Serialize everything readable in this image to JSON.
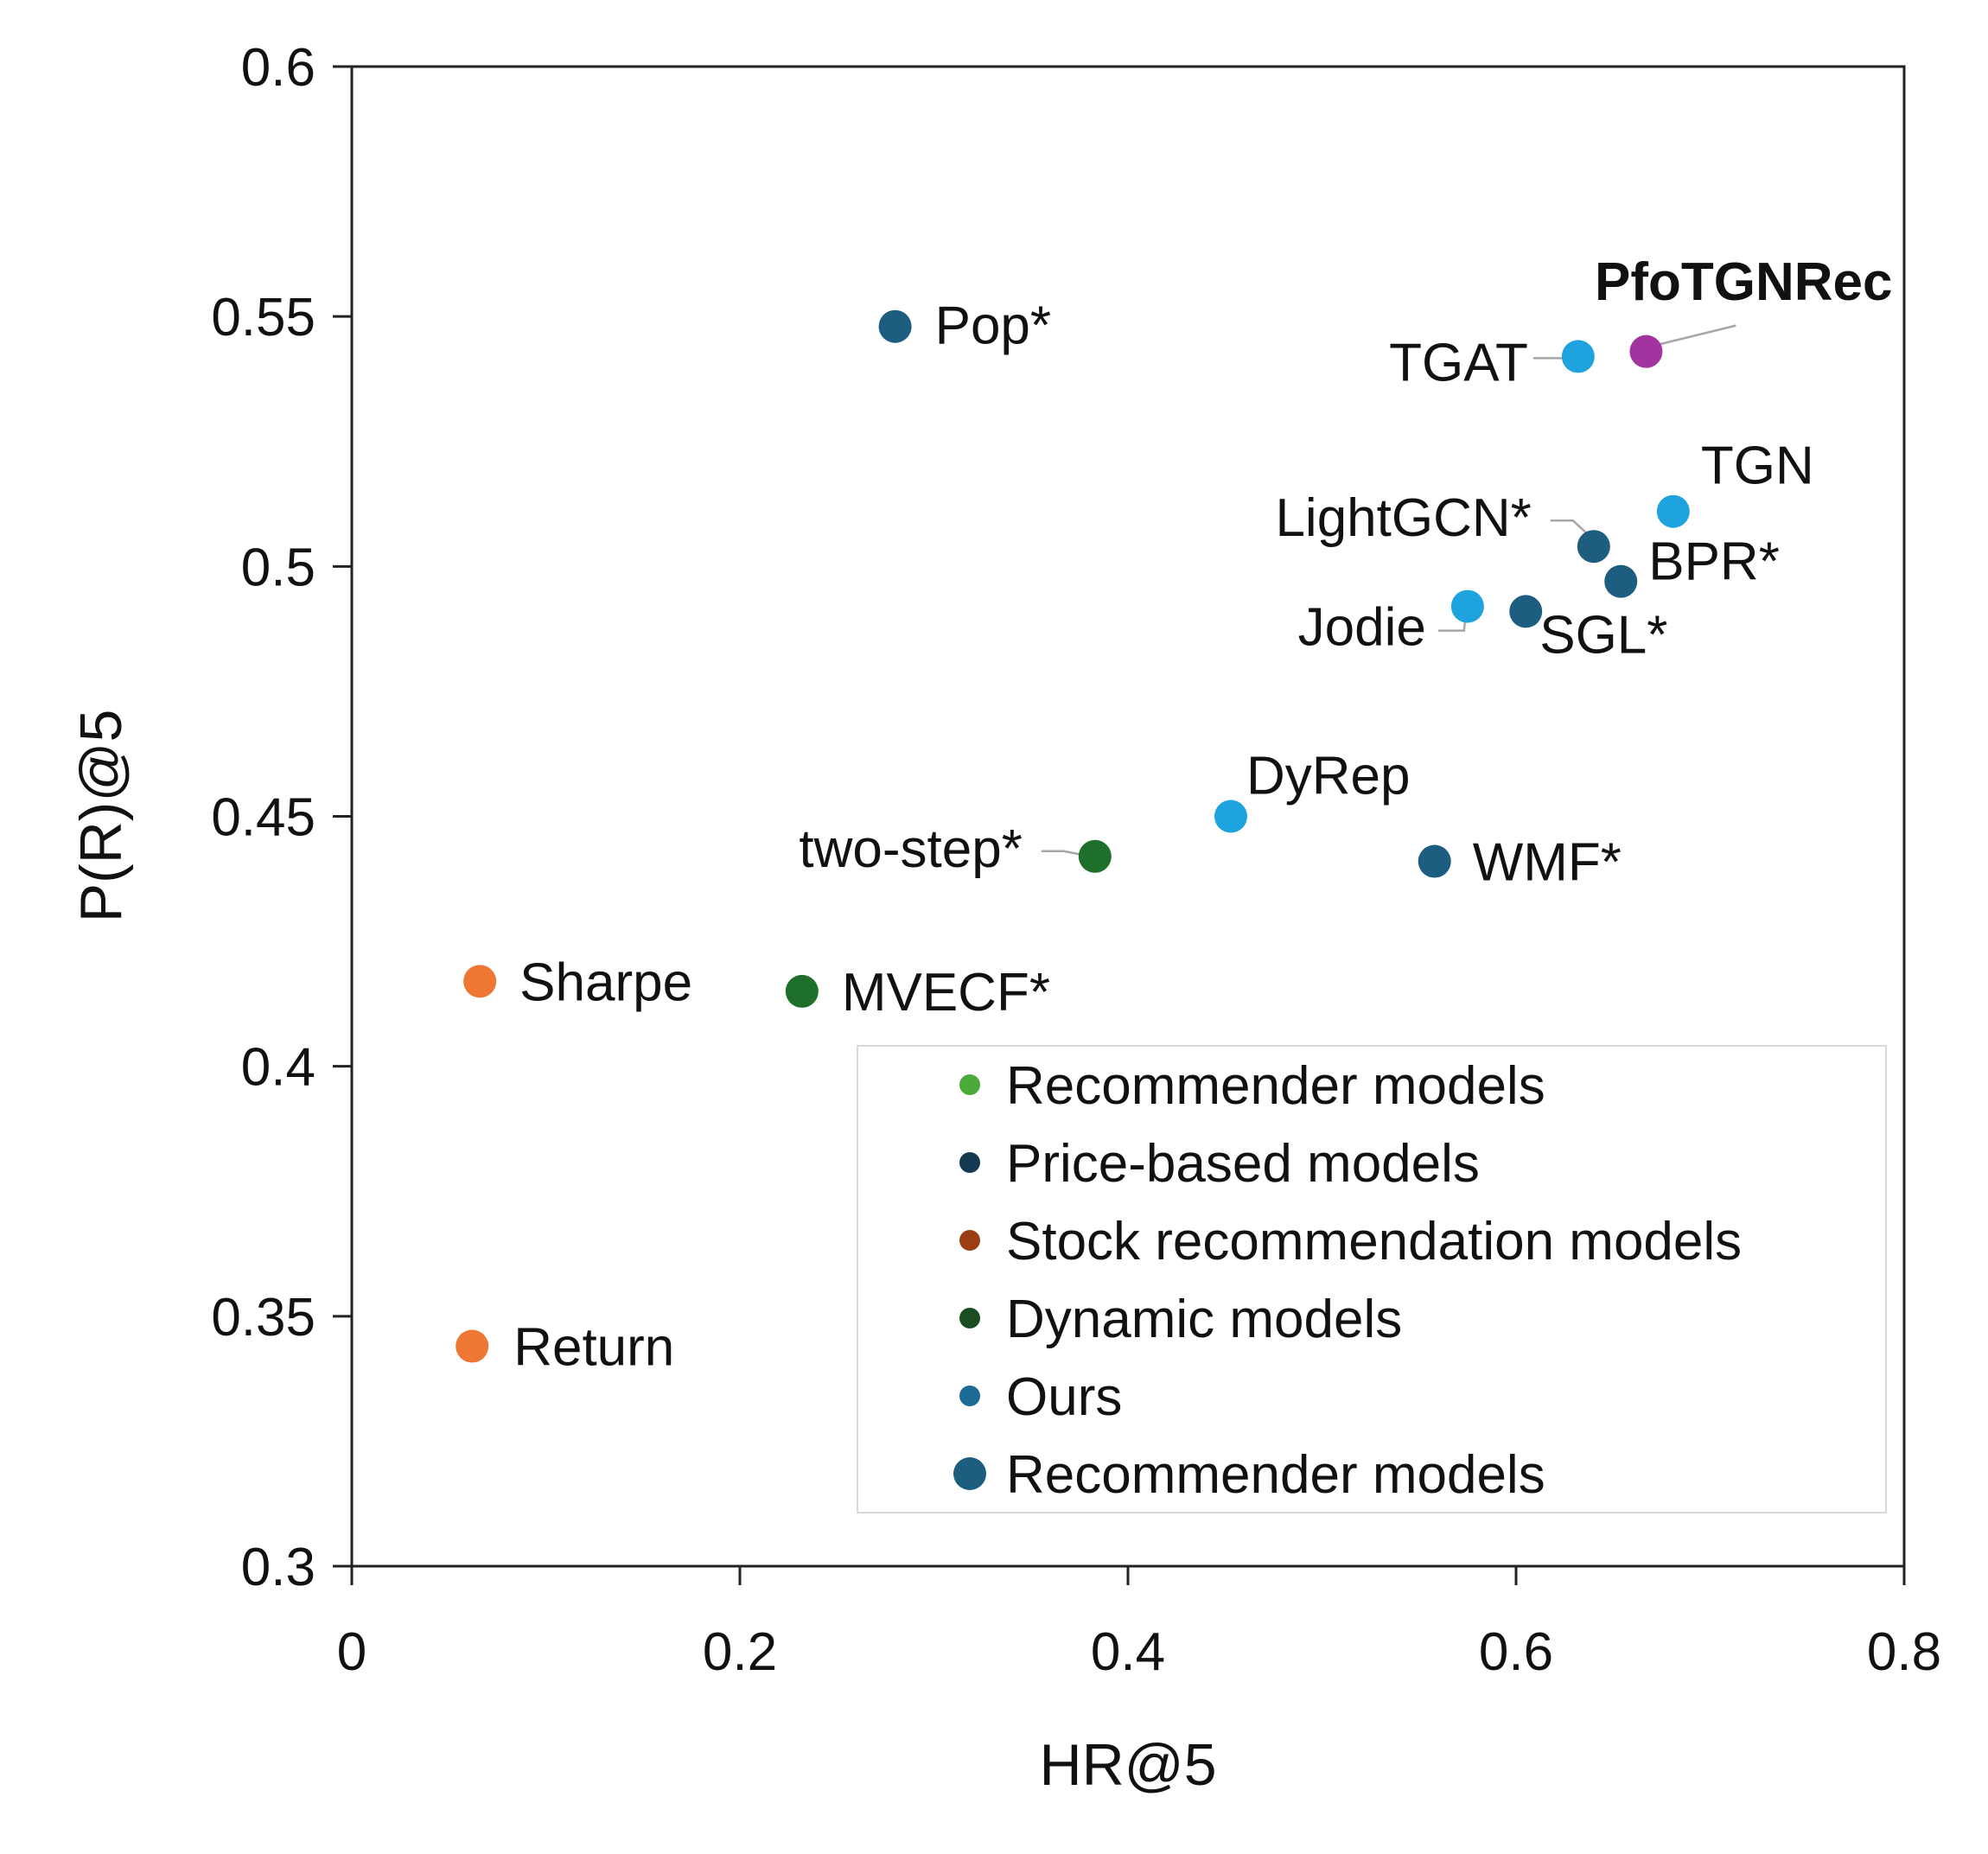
{
  "chart_data": {
    "type": "scatter",
    "xlabel": "HR@5",
    "ylabel": "P(R)@5",
    "xlim": [
      0,
      0.8
    ],
    "ylim": [
      0.3,
      0.6
    ],
    "xticks": [
      "0",
      "0.2",
      "0.4",
      "0.6",
      "0.8"
    ],
    "yticks": [
      "0.3",
      "0.35",
      "0.4",
      "0.45",
      "0.5",
      "0.55",
      "0.6"
    ],
    "grid": false,
    "legend_position": "bottom-right",
    "colors": {
      "recommender": "#1d5d80",
      "dynamic": "#24d0fb",
      "stock": "#ee7733",
      "portfolio": "#1e6f2a",
      "ours": "#a3339f"
    },
    "points": [
      {
        "label": "Pop*",
        "x": 0.28,
        "y": 0.548,
        "color": "#1d5d80"
      },
      {
        "label": "TGAT",
        "x": 0.632,
        "y": 0.542,
        "color": "#1fa3df"
      },
      {
        "label": "PfoTGNRec",
        "x": 0.667,
        "y": 0.543,
        "color": "#a3339f",
        "bold": true
      },
      {
        "label": "TGN",
        "x": 0.681,
        "y": 0.511,
        "color": "#1fa3df"
      },
      {
        "label": "LightGCN*",
        "x": 0.64,
        "y": 0.504,
        "color": "#1d5d80"
      },
      {
        "label": "BPR*",
        "x": 0.654,
        "y": 0.497,
        "color": "#1d5d80"
      },
      {
        "label": "Jodie",
        "x": 0.575,
        "y": 0.492,
        "color": "#1fa3df"
      },
      {
        "label": "SGL*",
        "x": 0.605,
        "y": 0.491,
        "color": "#1d5d80"
      },
      {
        "label": "DyRep",
        "x": 0.453,
        "y": 0.45,
        "color": "#1fa3df"
      },
      {
        "label": "two-step*",
        "x": 0.383,
        "y": 0.442,
        "color": "#1e6f2a"
      },
      {
        "label": "WMF*",
        "x": 0.558,
        "y": 0.441,
        "color": "#1d5d80"
      },
      {
        "label": "Sharpe",
        "x": 0.066,
        "y": 0.417,
        "color": "#ee7733"
      },
      {
        "label": "MVECF*",
        "x": 0.232,
        "y": 0.415,
        "color": "#1e6f2a"
      },
      {
        "label": "Return",
        "x": 0.062,
        "y": 0.344,
        "color": "#ee7733"
      }
    ],
    "legend": [
      {
        "label": "Recommender models",
        "color": "#4aaa3a",
        "size": "small"
      },
      {
        "label": "Price-based models",
        "color": "#143a52",
        "size": "small"
      },
      {
        "label": "Stock recommendation models",
        "color": "#9a3e14",
        "size": "small"
      },
      {
        "label": "Dynamic models",
        "color": "#1a4e22",
        "size": "small"
      },
      {
        "label": "Ours",
        "color": "#1d6a96",
        "size": "small"
      },
      {
        "label": "Recommender models",
        "color": "#1d5d80",
        "size": "large"
      }
    ]
  }
}
